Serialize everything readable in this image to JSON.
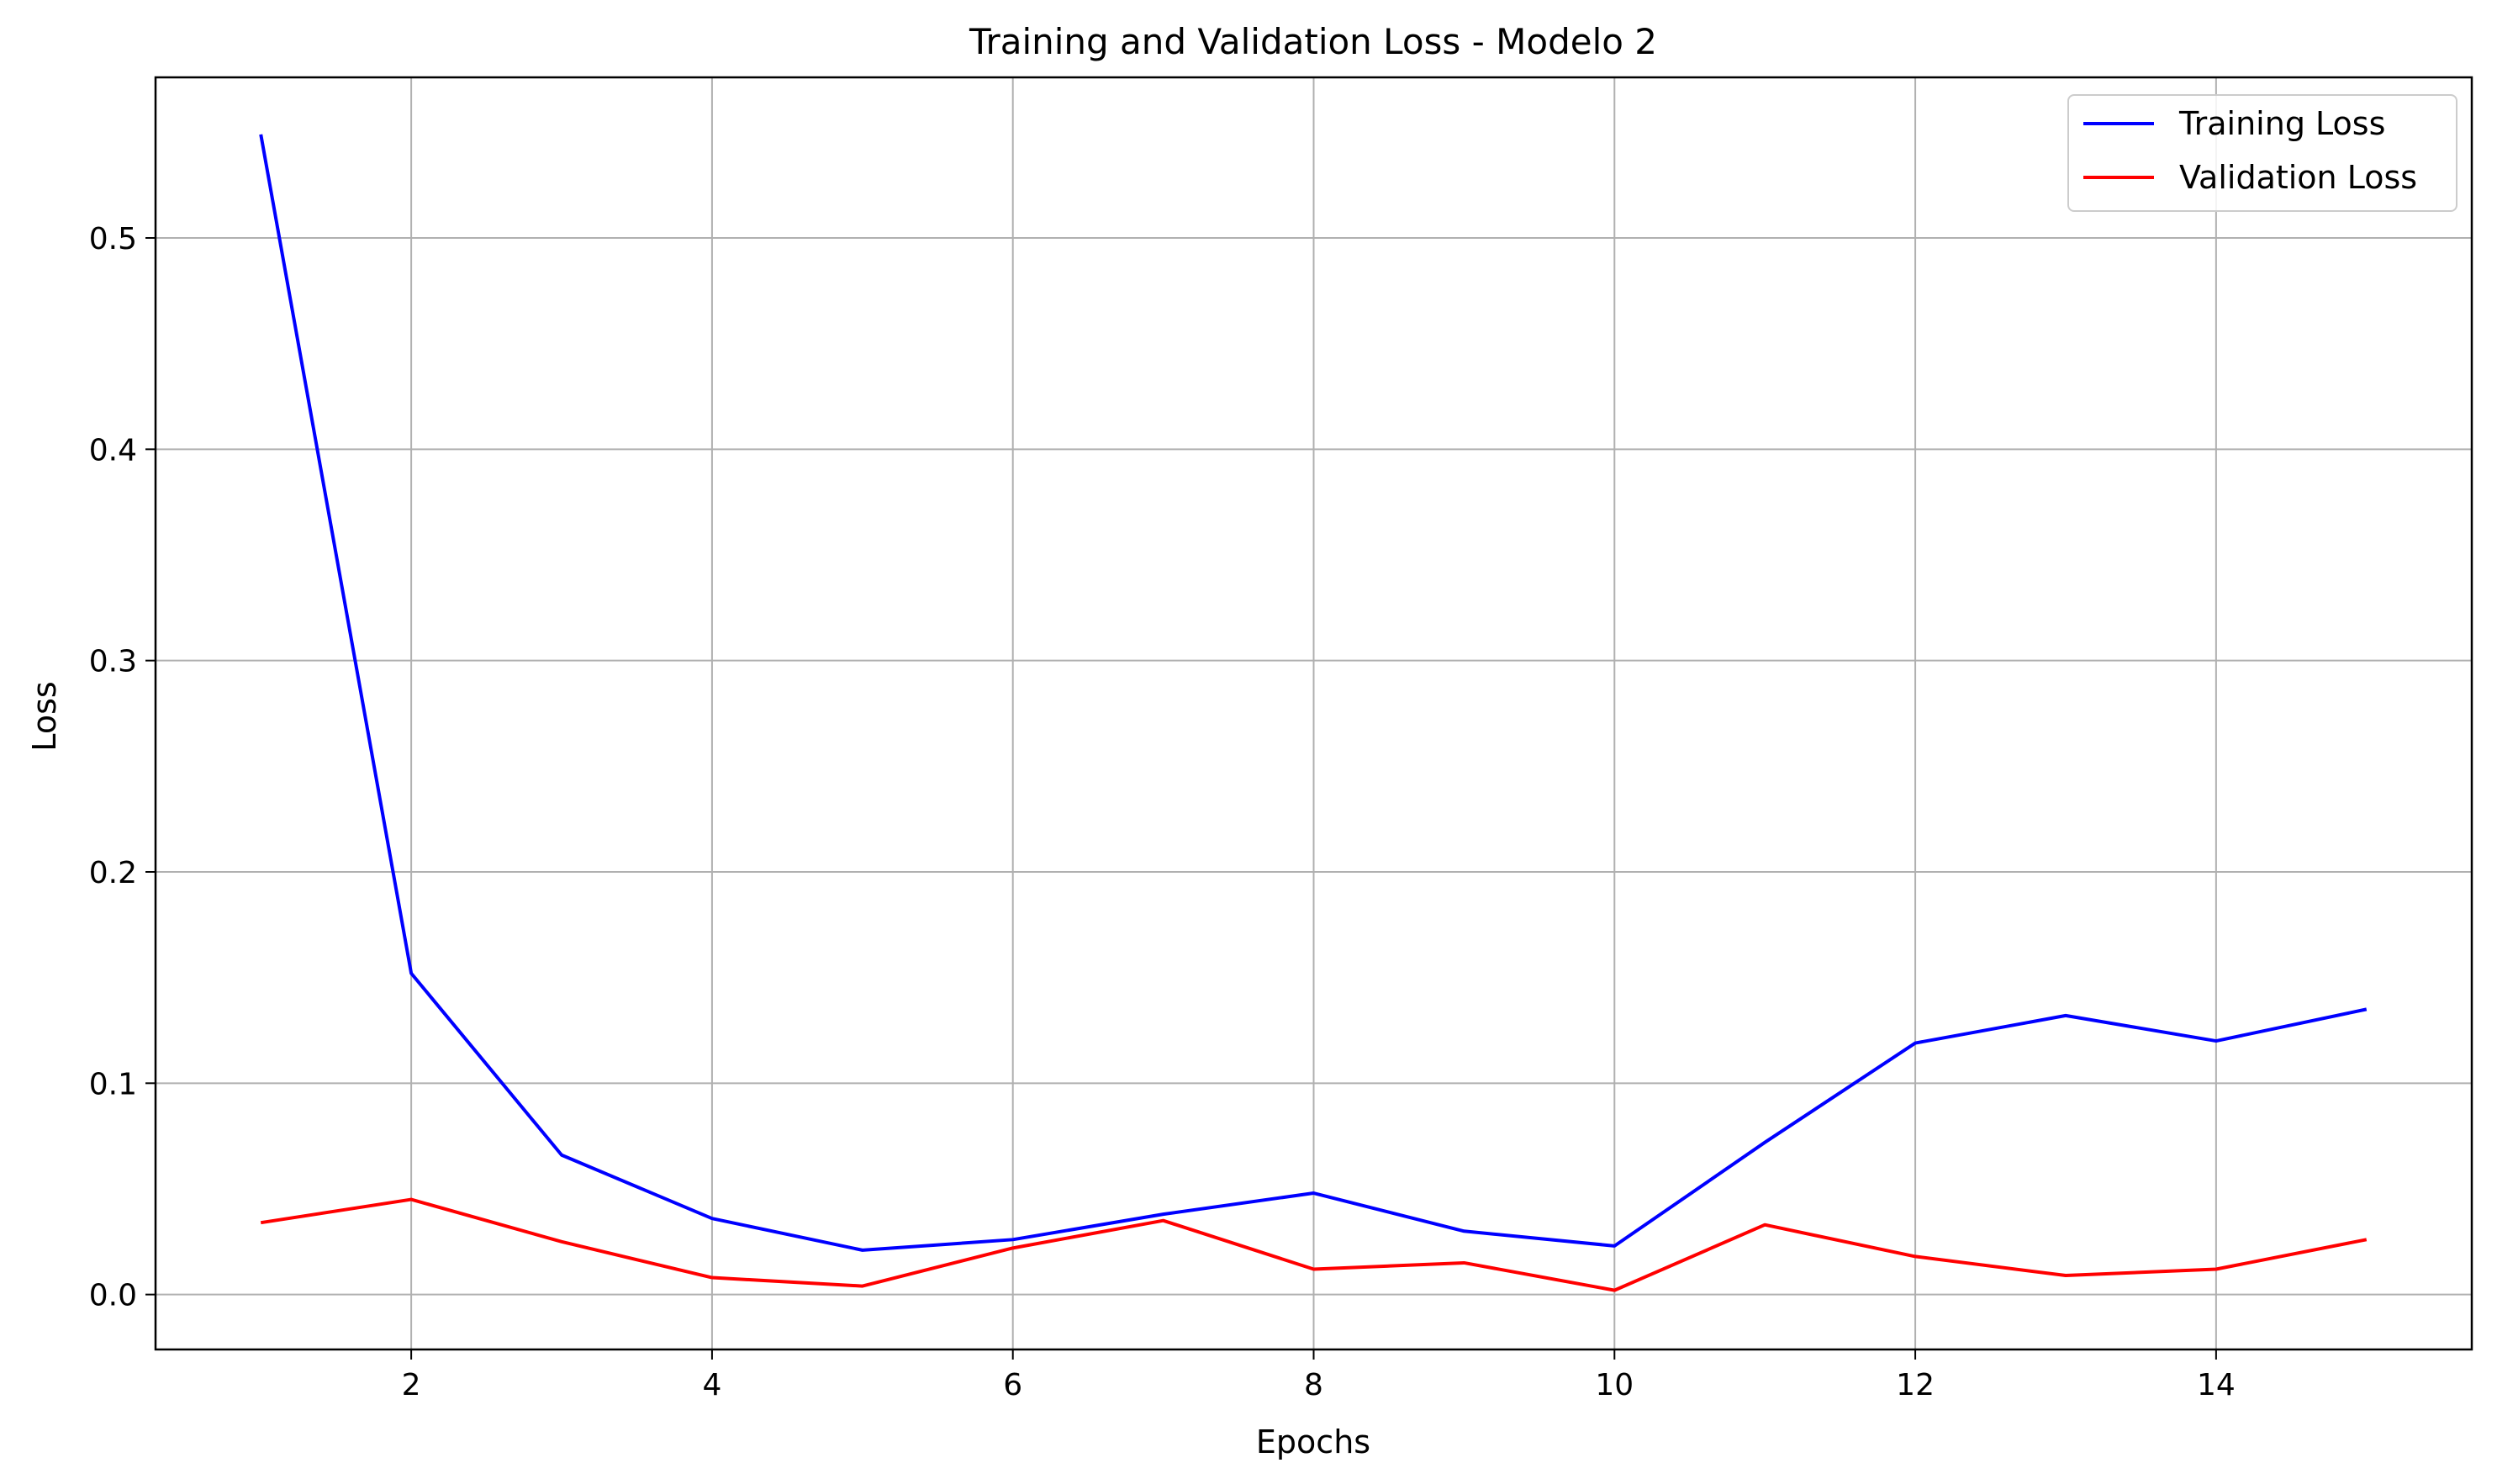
{
  "chart_data": {
    "type": "line",
    "title": "Training and Validation Loss - Modelo 2",
    "xlabel": "Epochs",
    "ylabel": "Loss",
    "xlim": [
      0.3,
      15.7
    ],
    "ylim": [
      -0.026,
      0.576
    ],
    "xticks": [
      2,
      4,
      6,
      8,
      10,
      12,
      14
    ],
    "yticks": [
      0.0,
      0.1,
      0.2,
      0.3,
      0.4,
      0.5
    ],
    "xtick_labels": [
      "2",
      "4",
      "6",
      "8",
      "10",
      "12",
      "14"
    ],
    "ytick_labels": [
      "0.0",
      "0.1",
      "0.2",
      "0.3",
      "0.4",
      "0.5"
    ],
    "grid": true,
    "legend": "top-right",
    "x": [
      1,
      2,
      3,
      4,
      5,
      6,
      7,
      8,
      9,
      10,
      11,
      12,
      13,
      14,
      15
    ],
    "series": [
      {
        "name": "Training Loss",
        "color": "#0000ff",
        "values": [
          0.549,
          0.152,
          0.066,
          0.036,
          0.021,
          0.026,
          0.038,
          0.048,
          0.03,
          0.023,
          0.072,
          0.119,
          0.132,
          0.12,
          0.135
        ]
      },
      {
        "name": "Validation Loss",
        "color": "#ff0000",
        "values": [
          0.034,
          0.045,
          0.025,
          0.008,
          0.004,
          0.022,
          0.035,
          0.012,
          0.015,
          0.002,
          0.033,
          0.018,
          0.009,
          0.012,
          0.026
        ]
      }
    ]
  }
}
